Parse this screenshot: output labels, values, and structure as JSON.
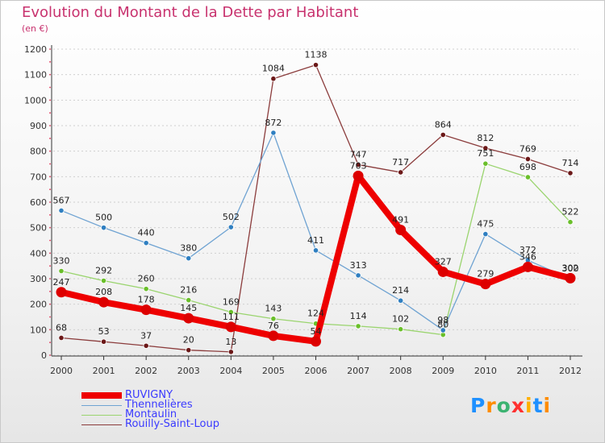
{
  "title": "Evolution du Montant de la Dette par Habitant",
  "subtitle": "(en €)",
  "logo": {
    "text": "Proxiti",
    "letters": [
      {
        "ch": "P",
        "color": "#1e90ff"
      },
      {
        "ch": "r",
        "color": "#ff8c00"
      },
      {
        "ch": "o",
        "color": "#3cb371"
      },
      {
        "ch": "x",
        "color": "#ff3030"
      },
      {
        "ch": "i",
        "color": "#ffb000"
      },
      {
        "ch": "t",
        "color": "#1e90ff"
      },
      {
        "ch": "i",
        "color": "#ff8c00"
      }
    ]
  },
  "chart_data": {
    "type": "line",
    "x": [
      "2000",
      "2001",
      "2002",
      "2003",
      "2004",
      "2005",
      "2006",
      "2007",
      "2008",
      "2009",
      "2010",
      "2011",
      "2012"
    ],
    "ylim": [
      0,
      1200
    ],
    "yticks": [
      "0",
      "100",
      "200",
      "300",
      "400",
      "500",
      "600",
      "700",
      "800",
      "900",
      "1000",
      "1100",
      "1200"
    ],
    "grid": "horizontal dashed",
    "legend_position": "bottom-left",
    "series": [
      {
        "name": "RUVIGNY",
        "color": "#ee0000",
        "width": 8,
        "marker_color": "#dd0000",
        "values": [
          247,
          208,
          178,
          145,
          111,
          76,
          54,
          703,
          491,
          327,
          279,
          346,
          302
        ],
        "labels": [
          "247",
          "208",
          "178",
          "145",
          "111",
          "76",
          "54",
          "703",
          "491",
          "327",
          "279",
          "346",
          "302"
        ]
      },
      {
        "name": "Thennelières",
        "color": "#6fa3d2",
        "width": 1.3,
        "marker_color": "#2f7fc1",
        "values": [
          567,
          500,
          440,
          380,
          502,
          872,
          411,
          313,
          214,
          98,
          475,
          372,
          300
        ],
        "labels": [
          "567",
          "500",
          "440",
          "380",
          "502",
          "872",
          "411",
          "313",
          "214",
          "98",
          "475",
          "372",
          "300"
        ]
      },
      {
        "name": "Montaulin",
        "color": "#9ad46e",
        "width": 1.3,
        "marker_color": "#6abf2a",
        "values": [
          330,
          292,
          260,
          216,
          169,
          143,
          124,
          114,
          102,
          80,
          751,
          698,
          522
        ],
        "labels": [
          "330",
          "292",
          "260",
          "216",
          "169",
          "143",
          "124",
          "114",
          "102",
          "80",
          "751",
          "698",
          "522"
        ]
      },
      {
        "name": "Rouilly-Saint-Loup",
        "color": "#8b3c3c",
        "width": 1.3,
        "marker_color": "#6b1818",
        "values": [
          68,
          53,
          37,
          20,
          13,
          1084,
          1138,
          747,
          717,
          864,
          812,
          769,
          714
        ],
        "labels": [
          "68",
          "53",
          "37",
          "20",
          "13",
          "1084",
          "1138",
          "747",
          "717",
          "864",
          "812",
          "769",
          "714"
        ]
      }
    ]
  }
}
